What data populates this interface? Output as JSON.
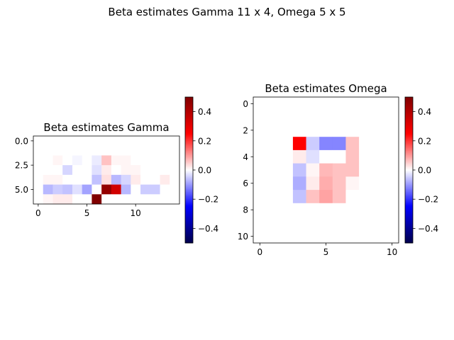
{
  "figure": {
    "suptitle": "Beta estimates Gamma 11 x 4, Omega 5 x 5"
  },
  "chart_data": [
    {
      "type": "heatmap",
      "title": "Beta estimates Gamma",
      "xlabel": "",
      "ylabel": "",
      "rows": 7,
      "cols": 15,
      "xlim": [
        -0.5,
        14.5
      ],
      "ylim": [
        6.5,
        -0.5
      ],
      "xticks": [
        0,
        5,
        10
      ],
      "xtick_labels": [
        "0",
        "5",
        "10"
      ],
      "yticks": [
        0.0,
        2.5,
        5.0
      ],
      "ytick_labels": [
        "0.0",
        "2.5",
        "5.0"
      ],
      "colormap": "seismic",
      "vmin": -0.5,
      "vmax": 0.5,
      "colorbar_ticks": [
        0.4,
        0.2,
        0.0,
        -0.2,
        -0.4
      ],
      "colorbar_labels": [
        "0.4",
        "0.2",
        "0.0",
        "−0.2",
        "−0.4"
      ],
      "values": [
        [
          0,
          0,
          0,
          0,
          0,
          0,
          0,
          0,
          0,
          0,
          0,
          0,
          0,
          0,
          0
        ],
        [
          0,
          0,
          0,
          0,
          0,
          0,
          0,
          0,
          0,
          0,
          0,
          0,
          0,
          0,
          0
        ],
        [
          0,
          0,
          0.01,
          0,
          -0.01,
          0,
          -0.02,
          0.06,
          0.01,
          0.01,
          0,
          0,
          0,
          0,
          0
        ],
        [
          0,
          0,
          0,
          -0.04,
          0,
          0,
          -0.03,
          0.02,
          0,
          0.01,
          0.01,
          0,
          0,
          0,
          0
        ],
        [
          0,
          0.01,
          0.01,
          0,
          0,
          0,
          -0.06,
          0.03,
          -0.07,
          -0.04,
          0.02,
          0,
          0,
          0.02,
          0
        ],
        [
          0,
          -0.07,
          -0.05,
          -0.06,
          -0.03,
          -0.09,
          0,
          0.46,
          0.34,
          -0.07,
          0,
          -0.05,
          -0.05,
          0,
          0
        ],
        [
          0,
          0.01,
          0.02,
          0.02,
          0,
          0,
          0.5,
          0,
          0,
          0,
          0,
          0,
          0,
          0,
          0
        ]
      ]
    },
    {
      "type": "heatmap",
      "title": "Beta estimates Omega",
      "xlabel": "",
      "ylabel": "",
      "rows": 11,
      "cols": 11,
      "xlim": [
        -0.5,
        10.5
      ],
      "ylim": [
        10.5,
        -0.5
      ],
      "xticks": [
        0,
        5,
        10
      ],
      "xtick_labels": [
        "0",
        "5",
        "10"
      ],
      "yticks": [
        0,
        2,
        4,
        6,
        8,
        10
      ],
      "ytick_labels": [
        "0",
        "2",
        "4",
        "6",
        "8",
        "10"
      ],
      "colormap": "seismic",
      "vmin": -0.5,
      "vmax": 0.5,
      "colorbar_ticks": [
        0.4,
        0.2,
        0.0,
        -0.2,
        -0.4
      ],
      "colorbar_labels": [
        "0.4",
        "0.2",
        "0.0",
        "−0.2",
        "−0.4"
      ],
      "values": [
        [
          0,
          0,
          0,
          0,
          0,
          0,
          0,
          0,
          0,
          0,
          0
        ],
        [
          0,
          0,
          0,
          0,
          0,
          0,
          0,
          0,
          0,
          0,
          0
        ],
        [
          0,
          0,
          0,
          0,
          0,
          0,
          0,
          0,
          0,
          0,
          0
        ],
        [
          0,
          0,
          0,
          0.25,
          -0.05,
          -0.12,
          -0.12,
          0.06,
          0,
          0,
          0
        ],
        [
          0,
          0,
          0,
          0.02,
          -0.03,
          0,
          0,
          0.06,
          0,
          0,
          0
        ],
        [
          0,
          0,
          0,
          -0.06,
          0.01,
          0.07,
          0.06,
          0.06,
          0,
          0,
          0
        ],
        [
          0,
          0,
          0,
          -0.08,
          0.02,
          0.08,
          0.06,
          0.01,
          0,
          0,
          0
        ],
        [
          0,
          0,
          0,
          -0.06,
          0.06,
          0.09,
          0.06,
          0,
          0,
          0,
          0
        ],
        [
          0,
          0,
          0,
          0,
          0,
          0,
          0,
          0,
          0,
          0,
          0
        ],
        [
          0,
          0,
          0,
          0,
          0,
          0,
          0,
          0,
          0,
          0,
          0
        ],
        [
          0,
          0,
          0,
          0,
          0,
          0,
          0,
          0,
          0,
          0,
          0
        ]
      ]
    }
  ]
}
